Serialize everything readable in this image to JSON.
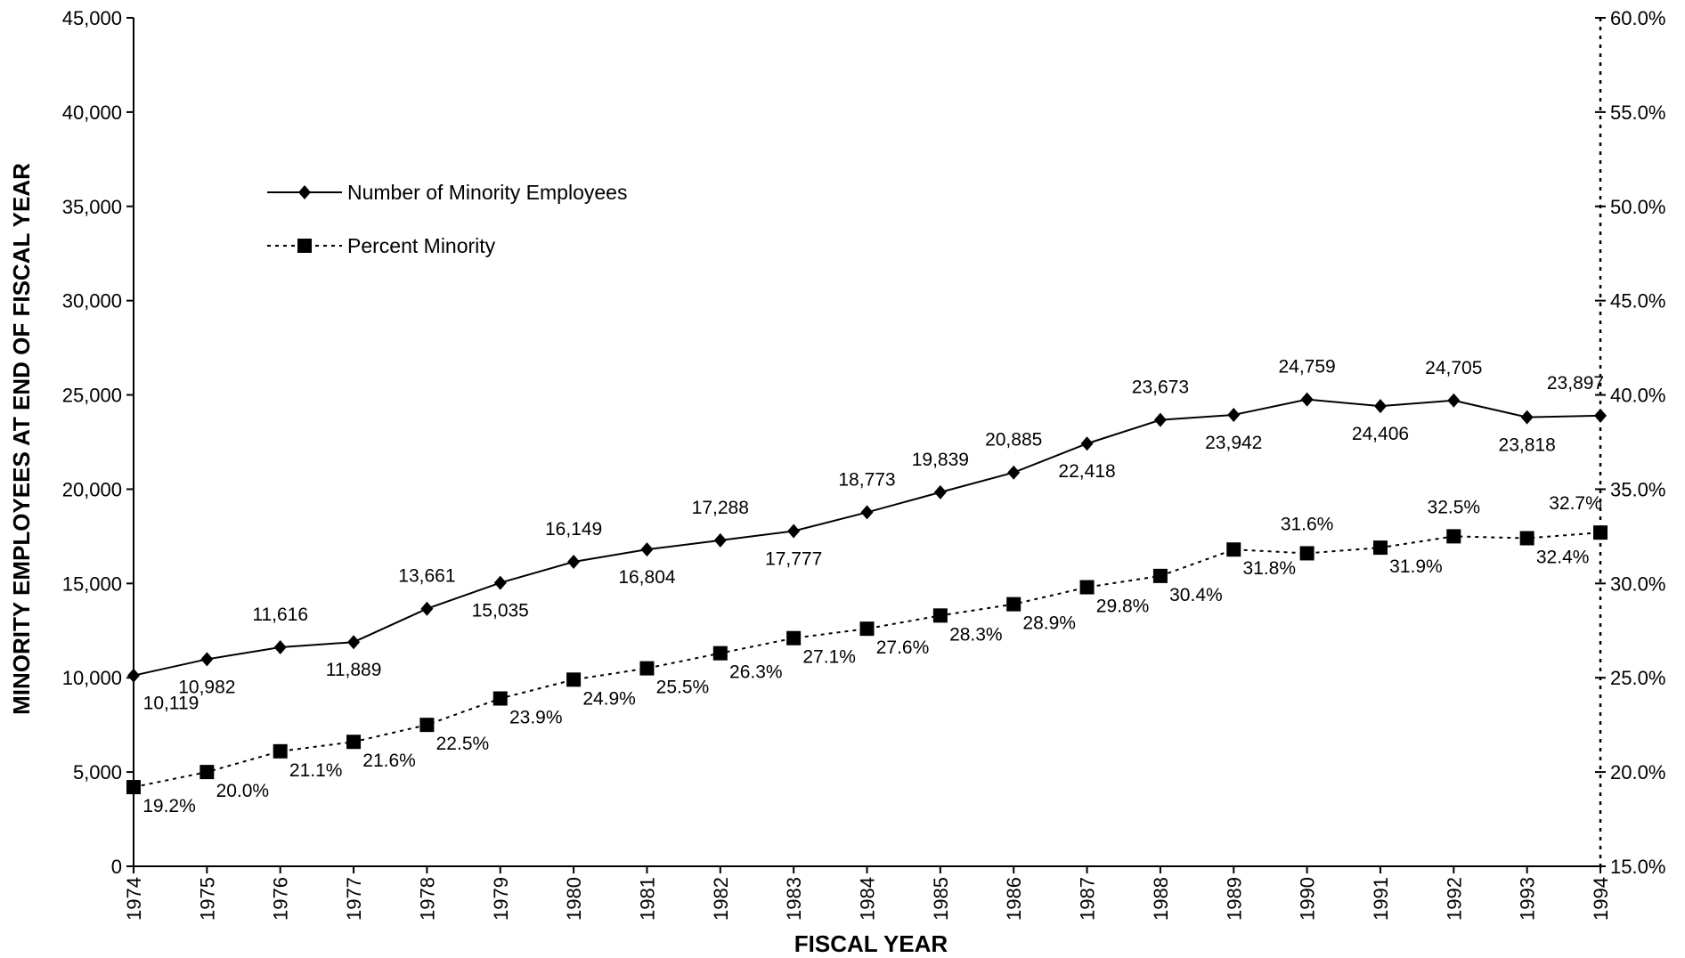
{
  "chart_data": {
    "type": "line",
    "xlabel": "FISCAL YEAR",
    "ylabel": "MINORITY EMPLOYEES AT END OF FISCAL YEAR",
    "x": [
      "1974",
      "1975",
      "1976",
      "1977",
      "1978",
      "1979",
      "1980",
      "1981",
      "1982",
      "1983",
      "1984",
      "1985",
      "1986",
      "1987",
      "1988",
      "1989",
      "1990",
      "1991",
      "1992",
      "1993",
      "1994"
    ],
    "ylim": [
      0,
      45000
    ],
    "y2lim": [
      15.0,
      60.0
    ],
    "yticks": [
      "0",
      "5,000",
      "10,000",
      "15,000",
      "20,000",
      "25,000",
      "30,000",
      "35,000",
      "40,000",
      "45,000"
    ],
    "y2ticks": [
      "15.0%",
      "20.0%",
      "25.0%",
      "30.0%",
      "35.0%",
      "40.0%",
      "45.0%",
      "50.0%",
      "55.0%",
      "60.0%"
    ],
    "legend_position": "upper-left",
    "grid": false,
    "series": [
      {
        "name": "Number of Minority Employees",
        "axis": "left",
        "style": "solid",
        "marker": "diamond",
        "values": [
          10119,
          10982,
          11616,
          11889,
          13661,
          15035,
          16149,
          16804,
          17288,
          17777,
          18773,
          19839,
          20885,
          22418,
          23673,
          23942,
          24759,
          24406,
          24705,
          23818,
          23897
        ],
        "labels": [
          "10,119",
          "10,982",
          "11,616",
          "11,889",
          "13,661",
          "15,035",
          "16,149",
          "16,804",
          "17,288",
          "17,777",
          "18,773",
          "19,839",
          "20,885",
          "22,418",
          "23,673",
          "23,942",
          "24,759",
          "24,406",
          "24,705",
          "23,818",
          "23,897"
        ]
      },
      {
        "name": "Percent Minority",
        "axis": "right",
        "style": "dotted",
        "marker": "square",
        "values": [
          19.2,
          20.0,
          21.1,
          21.6,
          22.5,
          23.9,
          24.9,
          25.5,
          26.3,
          27.1,
          27.6,
          28.3,
          28.9,
          29.8,
          30.4,
          31.8,
          31.6,
          31.9,
          32.5,
          32.4,
          32.7
        ],
        "labels": [
          "19.2%",
          "20.0%",
          "21.1%",
          "21.6%",
          "22.5%",
          "23.9%",
          "24.9%",
          "25.5%",
          "26.3%",
          "27.1%",
          "27.6%",
          "28.3%",
          "28.9%",
          "29.8%",
          "30.4%",
          "31.8%",
          "31.6%",
          "31.9%",
          "32.5%",
          "32.4%",
          "32.7%"
        ]
      }
    ]
  }
}
